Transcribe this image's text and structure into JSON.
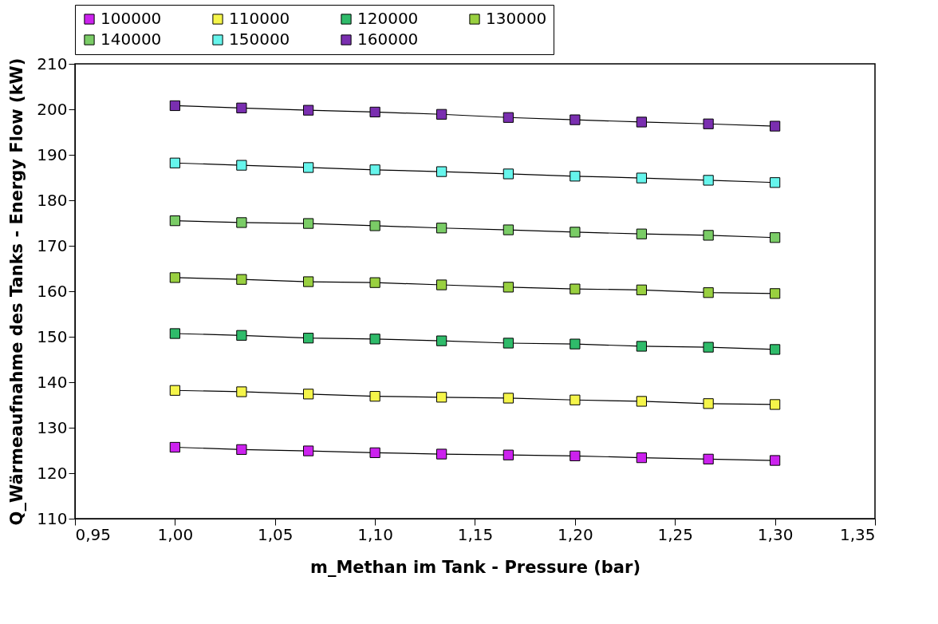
{
  "chart_data": {
    "type": "line",
    "xlabel": "m_Methan im Tank - Pressure (bar)",
    "ylabel": "Q_Wärmeaufnahme des Tanks - Energy Flow (kW)",
    "x": [
      1.0,
      1.0333,
      1.0667,
      1.1,
      1.1333,
      1.1667,
      1.2,
      1.2333,
      1.2667,
      1.3
    ],
    "xlim": [
      0.95,
      1.35
    ],
    "xticks": [
      {
        "value": 0.95,
        "label": "0,95"
      },
      {
        "value": 1.0,
        "label": "1,00"
      },
      {
        "value": 1.05,
        "label": "1,05"
      },
      {
        "value": 1.1,
        "label": "1,10"
      },
      {
        "value": 1.15,
        "label": "1,15"
      },
      {
        "value": 1.2,
        "label": "1,20"
      },
      {
        "value": 1.25,
        "label": "1,25"
      },
      {
        "value": 1.3,
        "label": "1,30"
      },
      {
        "value": 1.35,
        "label": "1,35"
      }
    ],
    "ylim": [
      110,
      210
    ],
    "yticks": [
      110,
      120,
      130,
      140,
      150,
      160,
      170,
      180,
      190,
      200,
      210
    ],
    "grid": false,
    "legend": "top",
    "marker": "square",
    "line_style": "solid",
    "series": [
      {
        "name": "100000",
        "color": "#cc22ee",
        "values": [
          125.7,
          125.2,
          124.9,
          124.5,
          124.2,
          124.0,
          123.8,
          123.4,
          123.1,
          122.8
        ]
      },
      {
        "name": "110000",
        "color": "#f5f54a",
        "values": [
          138.2,
          137.9,
          137.4,
          136.9,
          136.7,
          136.5,
          136.1,
          135.8,
          135.3,
          135.1
        ]
      },
      {
        "name": "120000",
        "color": "#2fbb6a",
        "values": [
          150.7,
          150.3,
          149.7,
          149.5,
          149.1,
          148.6,
          148.4,
          147.9,
          147.7,
          147.2
        ]
      },
      {
        "name": "130000",
        "color": "#99d040",
        "values": [
          163.0,
          162.6,
          162.1,
          161.9,
          161.4,
          160.9,
          160.5,
          160.3,
          159.7,
          159.5
        ]
      },
      {
        "name": "140000",
        "color": "#7acc66",
        "values": [
          175.5,
          175.1,
          174.9,
          174.4,
          173.9,
          173.5,
          173.0,
          172.6,
          172.3,
          171.8
        ]
      },
      {
        "name": "150000",
        "color": "#66f5ec",
        "values": [
          188.2,
          187.7,
          187.2,
          186.7,
          186.3,
          185.8,
          185.3,
          184.9,
          184.4,
          183.9
        ]
      },
      {
        "name": "160000",
        "color": "#7a2fb0",
        "values": [
          200.8,
          200.3,
          199.8,
          199.4,
          198.9,
          198.2,
          197.7,
          197.2,
          196.8,
          196.3
        ]
      }
    ]
  }
}
